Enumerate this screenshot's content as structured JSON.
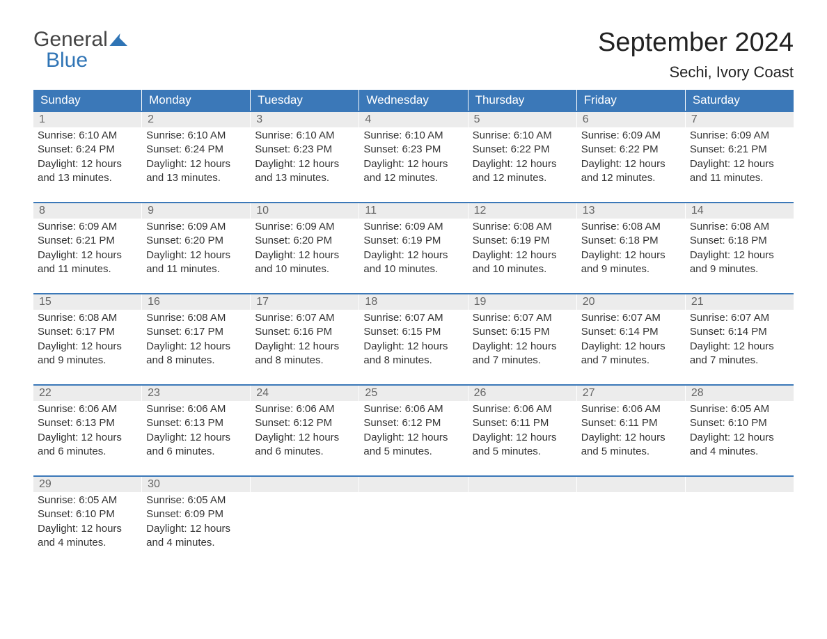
{
  "logo": {
    "line1": "General",
    "line2": "Blue"
  },
  "title": "September 2024",
  "location": "Sechi, Ivory Coast",
  "day_headers": [
    "Sunday",
    "Monday",
    "Tuesday",
    "Wednesday",
    "Thursday",
    "Friday",
    "Saturday"
  ],
  "header_bg": "#3b78b8",
  "header_fg": "#ffffff",
  "daynum_bg": "#ececec",
  "daynum_fg": "#666666",
  "border_top": "#3b78b8",
  "text_color": "#333333",
  "labels": {
    "sunrise": "Sunrise:",
    "sunset": "Sunset:",
    "daylight": "Daylight:"
  },
  "weeks": [
    [
      {
        "n": "1",
        "sunrise": "6:10 AM",
        "sunset": "6:24 PM",
        "daylight": "12 hours and 13 minutes."
      },
      {
        "n": "2",
        "sunrise": "6:10 AM",
        "sunset": "6:24 PM",
        "daylight": "12 hours and 13 minutes."
      },
      {
        "n": "3",
        "sunrise": "6:10 AM",
        "sunset": "6:23 PM",
        "daylight": "12 hours and 13 minutes."
      },
      {
        "n": "4",
        "sunrise": "6:10 AM",
        "sunset": "6:23 PM",
        "daylight": "12 hours and 12 minutes."
      },
      {
        "n": "5",
        "sunrise": "6:10 AM",
        "sunset": "6:22 PM",
        "daylight": "12 hours and 12 minutes."
      },
      {
        "n": "6",
        "sunrise": "6:09 AM",
        "sunset": "6:22 PM",
        "daylight": "12 hours and 12 minutes."
      },
      {
        "n": "7",
        "sunrise": "6:09 AM",
        "sunset": "6:21 PM",
        "daylight": "12 hours and 11 minutes."
      }
    ],
    [
      {
        "n": "8",
        "sunrise": "6:09 AM",
        "sunset": "6:21 PM",
        "daylight": "12 hours and 11 minutes."
      },
      {
        "n": "9",
        "sunrise": "6:09 AM",
        "sunset": "6:20 PM",
        "daylight": "12 hours and 11 minutes."
      },
      {
        "n": "10",
        "sunrise": "6:09 AM",
        "sunset": "6:20 PM",
        "daylight": "12 hours and 10 minutes."
      },
      {
        "n": "11",
        "sunrise": "6:09 AM",
        "sunset": "6:19 PM",
        "daylight": "12 hours and 10 minutes."
      },
      {
        "n": "12",
        "sunrise": "6:08 AM",
        "sunset": "6:19 PM",
        "daylight": "12 hours and 10 minutes."
      },
      {
        "n": "13",
        "sunrise": "6:08 AM",
        "sunset": "6:18 PM",
        "daylight": "12 hours and 9 minutes."
      },
      {
        "n": "14",
        "sunrise": "6:08 AM",
        "sunset": "6:18 PM",
        "daylight": "12 hours and 9 minutes."
      }
    ],
    [
      {
        "n": "15",
        "sunrise": "6:08 AM",
        "sunset": "6:17 PM",
        "daylight": "12 hours and 9 minutes."
      },
      {
        "n": "16",
        "sunrise": "6:08 AM",
        "sunset": "6:17 PM",
        "daylight": "12 hours and 8 minutes."
      },
      {
        "n": "17",
        "sunrise": "6:07 AM",
        "sunset": "6:16 PM",
        "daylight": "12 hours and 8 minutes."
      },
      {
        "n": "18",
        "sunrise": "6:07 AM",
        "sunset": "6:15 PM",
        "daylight": "12 hours and 8 minutes."
      },
      {
        "n": "19",
        "sunrise": "6:07 AM",
        "sunset": "6:15 PM",
        "daylight": "12 hours and 7 minutes."
      },
      {
        "n": "20",
        "sunrise": "6:07 AM",
        "sunset": "6:14 PM",
        "daylight": "12 hours and 7 minutes."
      },
      {
        "n": "21",
        "sunrise": "6:07 AM",
        "sunset": "6:14 PM",
        "daylight": "12 hours and 7 minutes."
      }
    ],
    [
      {
        "n": "22",
        "sunrise": "6:06 AM",
        "sunset": "6:13 PM",
        "daylight": "12 hours and 6 minutes."
      },
      {
        "n": "23",
        "sunrise": "6:06 AM",
        "sunset": "6:13 PM",
        "daylight": "12 hours and 6 minutes."
      },
      {
        "n": "24",
        "sunrise": "6:06 AM",
        "sunset": "6:12 PM",
        "daylight": "12 hours and 6 minutes."
      },
      {
        "n": "25",
        "sunrise": "6:06 AM",
        "sunset": "6:12 PM",
        "daylight": "12 hours and 5 minutes."
      },
      {
        "n": "26",
        "sunrise": "6:06 AM",
        "sunset": "6:11 PM",
        "daylight": "12 hours and 5 minutes."
      },
      {
        "n": "27",
        "sunrise": "6:06 AM",
        "sunset": "6:11 PM",
        "daylight": "12 hours and 5 minutes."
      },
      {
        "n": "28",
        "sunrise": "6:05 AM",
        "sunset": "6:10 PM",
        "daylight": "12 hours and 4 minutes."
      }
    ],
    [
      {
        "n": "29",
        "sunrise": "6:05 AM",
        "sunset": "6:10 PM",
        "daylight": "12 hours and 4 minutes."
      },
      {
        "n": "30",
        "sunrise": "6:05 AM",
        "sunset": "6:09 PM",
        "daylight": "12 hours and 4 minutes."
      },
      {
        "empty": true
      },
      {
        "empty": true
      },
      {
        "empty": true
      },
      {
        "empty": true
      },
      {
        "empty": true
      }
    ]
  ]
}
